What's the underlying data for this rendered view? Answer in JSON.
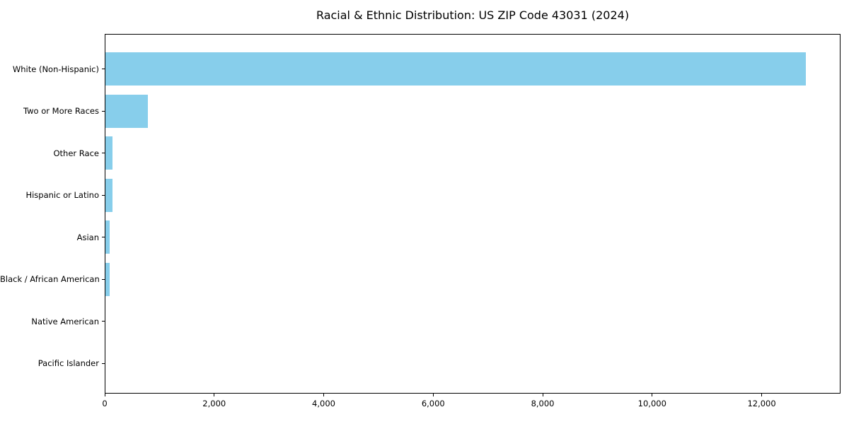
{
  "chart_data": {
    "type": "bar",
    "orientation": "horizontal",
    "title": "Racial & Ethnic Distribution: US ZIP Code 43031 (2024)",
    "categories": [
      "White (Non-Hispanic)",
      "Two or More Races",
      "Other Race",
      "Hispanic or Latino",
      "Asian",
      "Black / African American",
      "Native American",
      "Pacific Islander"
    ],
    "values": [
      12800,
      770,
      130,
      125,
      82,
      72,
      0,
      0
    ],
    "xlabel": "",
    "ylabel": "",
    "xlim": [
      0,
      13440
    ],
    "xticks": [
      0,
      2000,
      4000,
      6000,
      8000,
      10000,
      12000
    ],
    "xtick_labels": [
      "0",
      "2,000",
      "4,000",
      "6,000",
      "8,000",
      "10,000",
      "12,000"
    ],
    "bar_color": "#87CEEB",
    "axis_color": "#000000",
    "text_color": "#000000",
    "background_color": "#ffffff",
    "grid": false,
    "legend": null,
    "value_axis": "x",
    "category_axis": "y",
    "sort_order": "descending"
  }
}
